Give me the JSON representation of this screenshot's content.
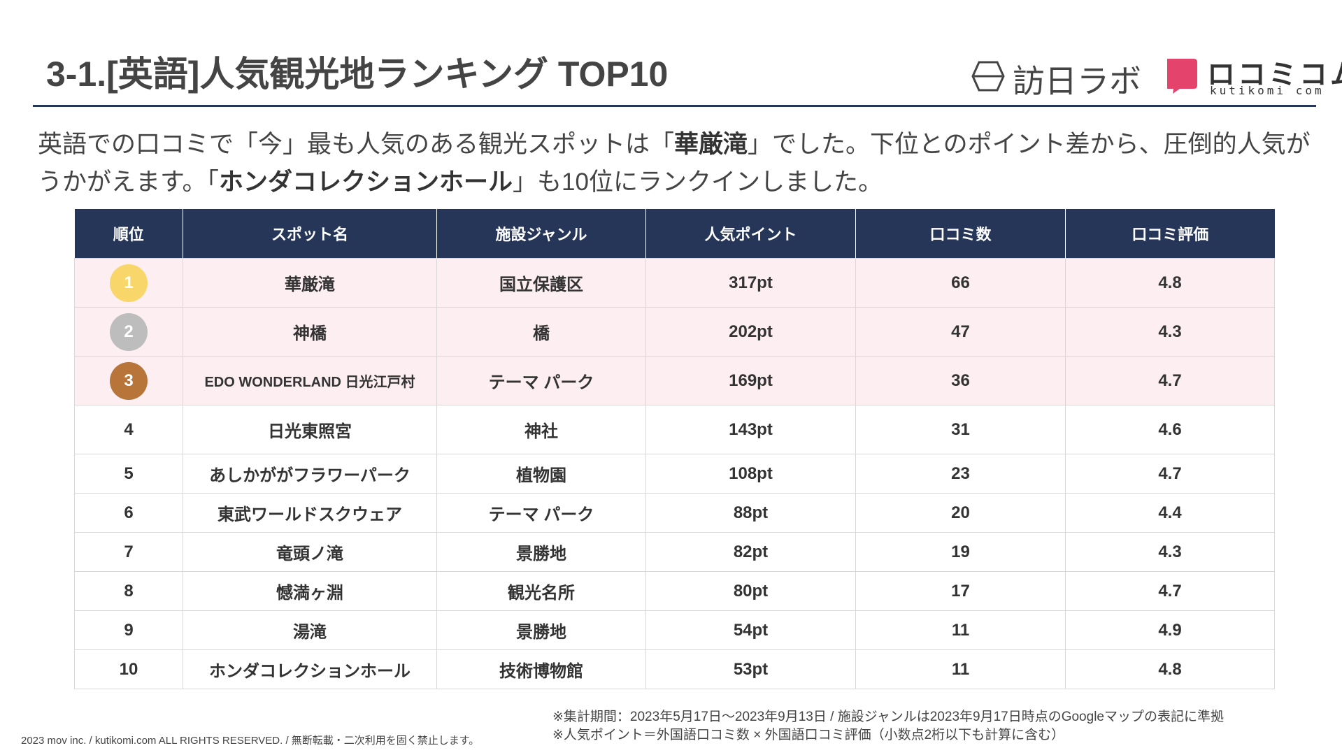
{
  "header": {
    "title": "3-1.[英語]人気観光地ランキング TOP10",
    "logo1": "訪日ラボ",
    "logo2": "ロコミコム",
    "logo2_sub": "kutikomi com"
  },
  "intro": [
    [
      {
        "text": "英語での口コミで「今」最も人気のある観光スポットは「",
        "bold": false
      },
      {
        "text": "華厳滝",
        "bold": true
      },
      {
        "text": "」でした。下位とのポイント差から、圧倒的人気が",
        "bold": false
      }
    ],
    [
      {
        "text": "うかがえます。「",
        "bold": false
      },
      {
        "text": "ホンダコレクションホール",
        "bold": true
      },
      {
        "text": "」も10位にランクインしました。",
        "bold": false
      }
    ]
  ],
  "table": {
    "columns": [
      "順位",
      "スポット名",
      "施設ジャンル",
      "人気ポイント",
      "口コミ数",
      "口コミ評価"
    ],
    "rows": [
      [
        "1",
        "華厳滝",
        "国立保護区",
        "317pt",
        "66",
        "4.8"
      ],
      [
        "2",
        "神橋",
        "橋",
        "202pt",
        "47",
        "4.3"
      ],
      [
        "3",
        "EDO WONDERLAND 日光江戸村",
        "テーマ パーク",
        "169pt",
        "36",
        "4.7"
      ],
      [
        "4",
        "日光東照宮",
        "神社",
        "143pt",
        "31",
        "4.6"
      ],
      [
        "5",
        "あしかががフラワーパーク",
        "植物園",
        "108pt",
        "23",
        "4.7"
      ],
      [
        "6",
        "東武ワールドスクウェア",
        "テーマ パーク",
        "88pt",
        "20",
        "4.4"
      ],
      [
        "7",
        "竜頭ノ滝",
        "景勝地",
        "82pt",
        "19",
        "4.3"
      ],
      [
        "8",
        "憾満ヶ淵",
        "観光名所",
        "80pt",
        "17",
        "4.7"
      ],
      [
        "9",
        "湯滝",
        "景勝地",
        "54pt",
        "11",
        "4.9"
      ],
      [
        "10",
        "ホンダコレクションホール",
        "技術博物館",
        "53pt",
        "11",
        "4.8"
      ]
    ]
  },
  "notes": [
    "※集計期間：2023年5月17日〜2023年9月13日 / 施設ジャンルは2023年9月17日時点のGoogleマップの表記に準拠",
    "※人気ポイント＝外国語口コミ数 × 外国語口コミ評価（小数点2桁以下も計算に含む）"
  ],
  "copyright": "2023 mov inc. / kutikomi.com ALL RIGHTS RESERVED. / 無断転載・二次利用を固く禁止します。"
}
